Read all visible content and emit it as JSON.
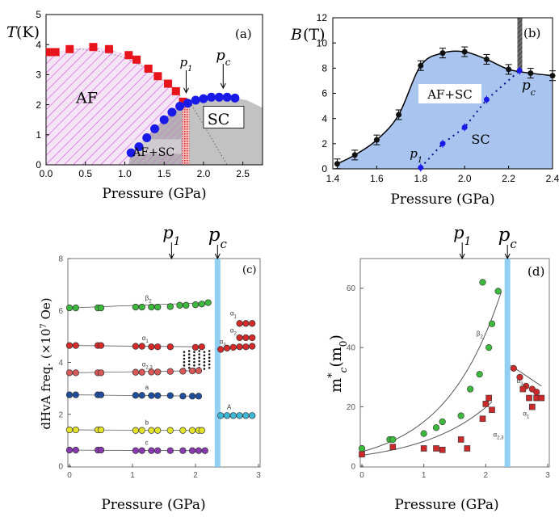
{
  "chart_data": [
    {
      "panel_label": "(a)",
      "type": "scatter",
      "ylabel_var": "T",
      "ylabel_unit": "(K)",
      "xlabel": "Pressure (GPa)",
      "xlim": [
        0.0,
        2.75
      ],
      "ylim": [
        0,
        5
      ],
      "xticks": [
        "0.0",
        "0.5",
        "1.0",
        "1.5",
        "2.0",
        "2.5"
      ],
      "yticks": [
        "0",
        "1",
        "2",
        "3",
        "4",
        "5"
      ],
      "regions": [
        "AF",
        "AF+SC",
        "SC"
      ],
      "markers": [
        {
          "symbol": "p",
          "sub": "1",
          "x": 1.78
        },
        {
          "symbol": "p",
          "sub": "c",
          "x": 2.25
        }
      ],
      "series": [
        {
          "name": "AF (T_N)",
          "marker": "square",
          "color": "#e8141c",
          "x": [
            0.05,
            0.12,
            0.3,
            0.6,
            0.8,
            1.05,
            1.15,
            1.3,
            1.42,
            1.55,
            1.65,
            1.74
          ],
          "y": [
            3.75,
            3.75,
            3.85,
            3.92,
            3.85,
            3.65,
            3.5,
            3.2,
            2.95,
            2.7,
            2.45,
            2.1
          ]
        },
        {
          "name": "SC (T_c)",
          "marker": "circle",
          "color": "#1a1ae8",
          "x": [
            1.08,
            1.18,
            1.28,
            1.38,
            1.5,
            1.6,
            1.7,
            1.8,
            1.9,
            2.0,
            2.1,
            2.2,
            2.3,
            2.4
          ],
          "y": [
            0.4,
            0.6,
            0.9,
            1.2,
            1.5,
            1.75,
            1.95,
            2.05,
            2.15,
            2.2,
            2.25,
            2.25,
            2.25,
            2.22
          ]
        }
      ]
    },
    {
      "panel_label": "(b)",
      "type": "line",
      "ylabel_var": "B",
      "ylabel_unit": "(T)",
      "xlabel": "Pressure (GPa)",
      "xlim": [
        1.4,
        2.4
      ],
      "ylim": [
        0,
        12
      ],
      "xticks": [
        "1.4",
        "1.6",
        "1.8",
        "2.0",
        "2.2",
        "2.4"
      ],
      "yticks": [
        "0",
        "2",
        "4",
        "6",
        "8",
        "10",
        "12"
      ],
      "regions": [
        "AF+SC",
        "SC"
      ],
      "markers": [
        {
          "symbol": "p",
          "sub": "1",
          "x": 1.8
        },
        {
          "symbol": "p",
          "sub": "c",
          "x": 2.25
        }
      ],
      "series": [
        {
          "name": "Bc2",
          "marker": "circle",
          "color": "#000000",
          "x": [
            1.42,
            1.5,
            1.6,
            1.7,
            1.8,
            1.9,
            2.0,
            2.1,
            2.2,
            2.3,
            2.4
          ],
          "y": [
            0.4,
            1.1,
            2.3,
            4.3,
            8.2,
            9.2,
            9.3,
            8.7,
            7.9,
            7.6,
            7.4
          ]
        },
        {
          "name": "AF boundary",
          "marker": "circle",
          "color": "#1a1ae8",
          "x": [
            1.8,
            1.9,
            2.0,
            2.1,
            2.25
          ],
          "y": [
            0.1,
            2.0,
            3.3,
            5.5,
            7.8
          ]
        }
      ]
    },
    {
      "panel_label": "(c)",
      "type": "scatter",
      "ylabel": "dHvA freq. (×10",
      "ylabel_exp": "7",
      "ylabel_tail": " Oe)",
      "xlabel": "Pressure (GPa)",
      "xlim": [
        0,
        3
      ],
      "ylim": [
        0,
        8
      ],
      "xticks": [
        "0",
        "1",
        "2",
        "3"
      ],
      "yticks": [
        "0",
        "2",
        "4",
        "6",
        "8"
      ],
      "markers": [
        {
          "symbol": "p",
          "sub": "1",
          "x": 1.62
        },
        {
          "symbol": "p",
          "sub": "c",
          "x": 2.35
        }
      ],
      "branch_labels": [
        "β2",
        "α1",
        "α2,3",
        "a",
        "b",
        "c",
        "α1",
        "α2",
        "α3",
        "A"
      ],
      "series": [
        {
          "name": "β2",
          "color": "#3cb83c",
          "x": [
            0,
            0.1,
            0.45,
            0.5,
            1.05,
            1.15,
            1.3,
            1.4,
            1.6,
            1.75,
            1.85,
            2.0,
            2.1,
            2.2
          ],
          "y": [
            6.1,
            6.1,
            6.1,
            6.1,
            6.13,
            6.13,
            6.13,
            6.13,
            6.15,
            6.2,
            6.2,
            6.22,
            6.25,
            6.3
          ]
        },
        {
          "name": "α1",
          "color": "#d42a2a",
          "x": [
            0,
            0.1,
            0.45,
            0.5,
            1.05,
            1.15,
            1.3,
            1.4,
            1.6,
            2.0,
            2.1
          ],
          "y": [
            4.65,
            4.65,
            4.65,
            4.65,
            4.62,
            4.62,
            4.6,
            4.6,
            4.6,
            4.58,
            4.6
          ]
        },
        {
          "name": "α2,3",
          "color": "#d85858",
          "x": [
            0,
            0.1,
            0.45,
            0.5,
            1.05,
            1.15,
            1.3,
            1.4,
            1.6,
            1.8,
            1.95,
            2.05
          ],
          "y": [
            3.6,
            3.6,
            3.6,
            3.6,
            3.62,
            3.62,
            3.63,
            3.63,
            3.65,
            3.66,
            3.67,
            3.68
          ]
        },
        {
          "name": "α (p > pc)",
          "color": "#d42a2a",
          "x": [
            2.4,
            2.5,
            2.6,
            2.7,
            2.8,
            2.9,
            2.7,
            2.8,
            2.9,
            2.7,
            2.8,
            2.9
          ],
          "y": [
            4.5,
            4.55,
            4.58,
            4.6,
            4.6,
            4.62,
            4.95,
            4.95,
            4.95,
            5.5,
            5.5,
            5.5
          ]
        },
        {
          "name": "a",
          "color": "#1f4e9e",
          "x": [
            0,
            0.1,
            0.45,
            0.5,
            1.05,
            1.15,
            1.3,
            1.4,
            1.6,
            1.8,
            1.95,
            2.05
          ],
          "y": [
            2.75,
            2.75,
            2.75,
            2.75,
            2.73,
            2.73,
            2.72,
            2.72,
            2.72,
            2.7,
            2.7,
            2.7
          ]
        },
        {
          "name": "b",
          "color": "#e2e22a",
          "x": [
            0,
            0.1,
            0.45,
            0.5,
            1.05,
            1.15,
            1.3,
            1.4,
            1.6,
            1.8,
            1.95,
            2.05,
            2.1
          ],
          "y": [
            1.4,
            1.4,
            1.4,
            1.4,
            1.38,
            1.38,
            1.38,
            1.38,
            1.38,
            1.38,
            1.38,
            1.38,
            1.38
          ]
        },
        {
          "name": "c",
          "color": "#8a3ab0",
          "x": [
            0,
            0.1,
            0.45,
            0.5,
            1.05,
            1.15,
            1.3,
            1.4,
            1.6,
            1.8,
            1.95,
            2.05,
            2.15
          ],
          "y": [
            0.62,
            0.62,
            0.62,
            0.62,
            0.6,
            0.6,
            0.6,
            0.6,
            0.6,
            0.6,
            0.6,
            0.6,
            0.6
          ]
        },
        {
          "name": "A",
          "color": "#3cb8d8",
          "x": [
            2.4,
            2.5,
            2.6,
            2.7,
            2.8,
            2.9
          ],
          "y": [
            1.95,
            1.95,
            1.95,
            1.95,
            1.95,
            1.95
          ]
        }
      ]
    },
    {
      "panel_label": "(d)",
      "type": "scatter",
      "ylabel": "m",
      "xlabel": "Pressure (GPa)",
      "xlim": [
        0,
        3
      ],
      "ylim": [
        0,
        70
      ],
      "xticks": [
        "0",
        "1",
        "2",
        "3"
      ],
      "yticks": [
        "0",
        "20",
        "40",
        "60"
      ],
      "markers": [
        {
          "symbol": "p",
          "sub": "1",
          "x": 1.62
        },
        {
          "symbol": "p",
          "sub": "c",
          "x": 2.35
        }
      ],
      "branch_labels": [
        "β2",
        "α2,3",
        "α3",
        "α1"
      ],
      "series": [
        {
          "name": "β2",
          "marker": "circle",
          "color": "#3cb83c",
          "x": [
            0,
            0.45,
            0.5,
            1.0,
            1.2,
            1.3,
            1.6,
            1.75,
            1.9,
            1.95,
            2.05,
            2.1,
            2.2
          ],
          "y": [
            6,
            9,
            9,
            11,
            13,
            15,
            17,
            26,
            31,
            62,
            40,
            48,
            59
          ]
        },
        {
          "name": "α2,3",
          "marker": "square",
          "color": "#cc2a2a",
          "x": [
            0,
            0.5,
            1.0,
            1.2,
            1.3,
            1.6,
            1.7,
            1.95,
            2.0,
            2.05,
            2.1
          ],
          "y": [
            4,
            6.5,
            6,
            6,
            5.5,
            9,
            6,
            16,
            21,
            23,
            19
          ]
        },
        {
          "name": "α (p > pc)",
          "marker": "circle",
          "color": "#cc2a2a",
          "x": [
            2.45,
            2.55,
            2.65,
            2.75,
            2.82
          ],
          "y": [
            33,
            30,
            27,
            26,
            25
          ]
        },
        {
          "name": "α1 (p > pc)",
          "marker": "square",
          "color": "#cc2a2a",
          "x": [
            2.6,
            2.7,
            2.75,
            2.82,
            2.9
          ],
          "y": [
            26,
            23,
            20,
            23,
            23
          ]
        }
      ]
    }
  ]
}
